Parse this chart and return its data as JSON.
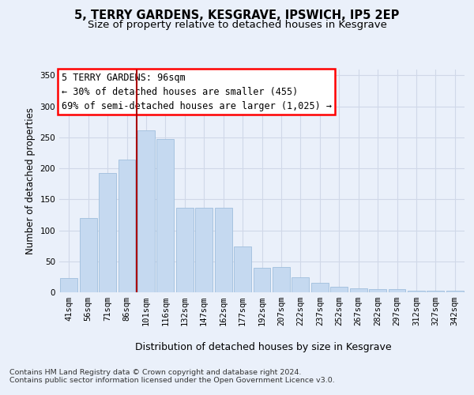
{
  "title1": "5, TERRY GARDENS, KESGRAVE, IPSWICH, IP5 2EP",
  "title2": "Size of property relative to detached houses in Kesgrave",
  "xlabel": "Distribution of detached houses by size in Kesgrave",
  "ylabel": "Number of detached properties",
  "categories": [
    "41sqm",
    "56sqm",
    "71sqm",
    "86sqm",
    "101sqm",
    "116sqm",
    "132sqm",
    "147sqm",
    "162sqm",
    "177sqm",
    "192sqm",
    "207sqm",
    "222sqm",
    "237sqm",
    "252sqm",
    "267sqm",
    "282sqm",
    "297sqm",
    "312sqm",
    "327sqm",
    "342sqm"
  ],
  "values": [
    23,
    120,
    193,
    214,
    261,
    247,
    136,
    136,
    136,
    74,
    40,
    41,
    24,
    15,
    9,
    6,
    5,
    5,
    3,
    3,
    2
  ],
  "bar_color": "#c5d9f0",
  "bar_edge_color": "#a0bedd",
  "annotation_line1": "5 TERRY GARDENS: 96sqm",
  "annotation_line2": "← 30% of detached houses are smaller (455)",
  "annotation_line3": "69% of semi-detached houses are larger (1,025) →",
  "vline_color": "#aa0000",
  "vline_x": 3.5,
  "ylim": [
    0,
    360
  ],
  "yticks": [
    0,
    50,
    100,
    150,
    200,
    250,
    300,
    350
  ],
  "fig_bg_color": "#eaf0fa",
  "plot_bg_color": "#eaf0fa",
  "grid_color": "#d0d8e8",
  "footer1": "Contains HM Land Registry data © Crown copyright and database right 2024.",
  "footer2": "Contains public sector information licensed under the Open Government Licence v3.0.",
  "title1_fontsize": 10.5,
  "title2_fontsize": 9.5,
  "ylabel_fontsize": 8.5,
  "xlabel_fontsize": 9,
  "tick_fontsize": 7.5,
  "annotation_fontsize": 8.5,
  "footer_fontsize": 6.8
}
